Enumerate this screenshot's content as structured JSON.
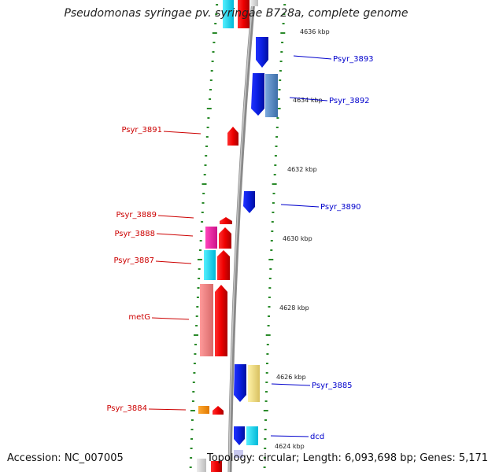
{
  "title": "Pseudomonas syringae pv. syringae B728a, complete genome",
  "footer": {
    "accession": "Accession: NC_007005",
    "topology": "Topology: circular; Length: 6,093,698 bp; Genes: 5,171"
  },
  "colors": {
    "forward_label": "#0000cc",
    "reverse_label": "#cc0000",
    "backbone": "#8a8a8a",
    "tick": "#2a8a2a"
  },
  "kbp_ticks": [
    "4636 kbp",
    "4634 kbp",
    "4632 kbp",
    "4630 kbp",
    "4628 kbp",
    "4626 kbp",
    "4624 kbp"
  ],
  "reverse_gene_labels": [
    "Psyr_3891",
    "Psyr_3889",
    "Psyr_3888",
    "Psyr_3887",
    "metG",
    "Psyr_3884"
  ],
  "forward_gene_labels": [
    "Psyr_3893",
    "Psyr_3892",
    "Psyr_3890",
    "Psyr_3885",
    "dcd"
  ]
}
